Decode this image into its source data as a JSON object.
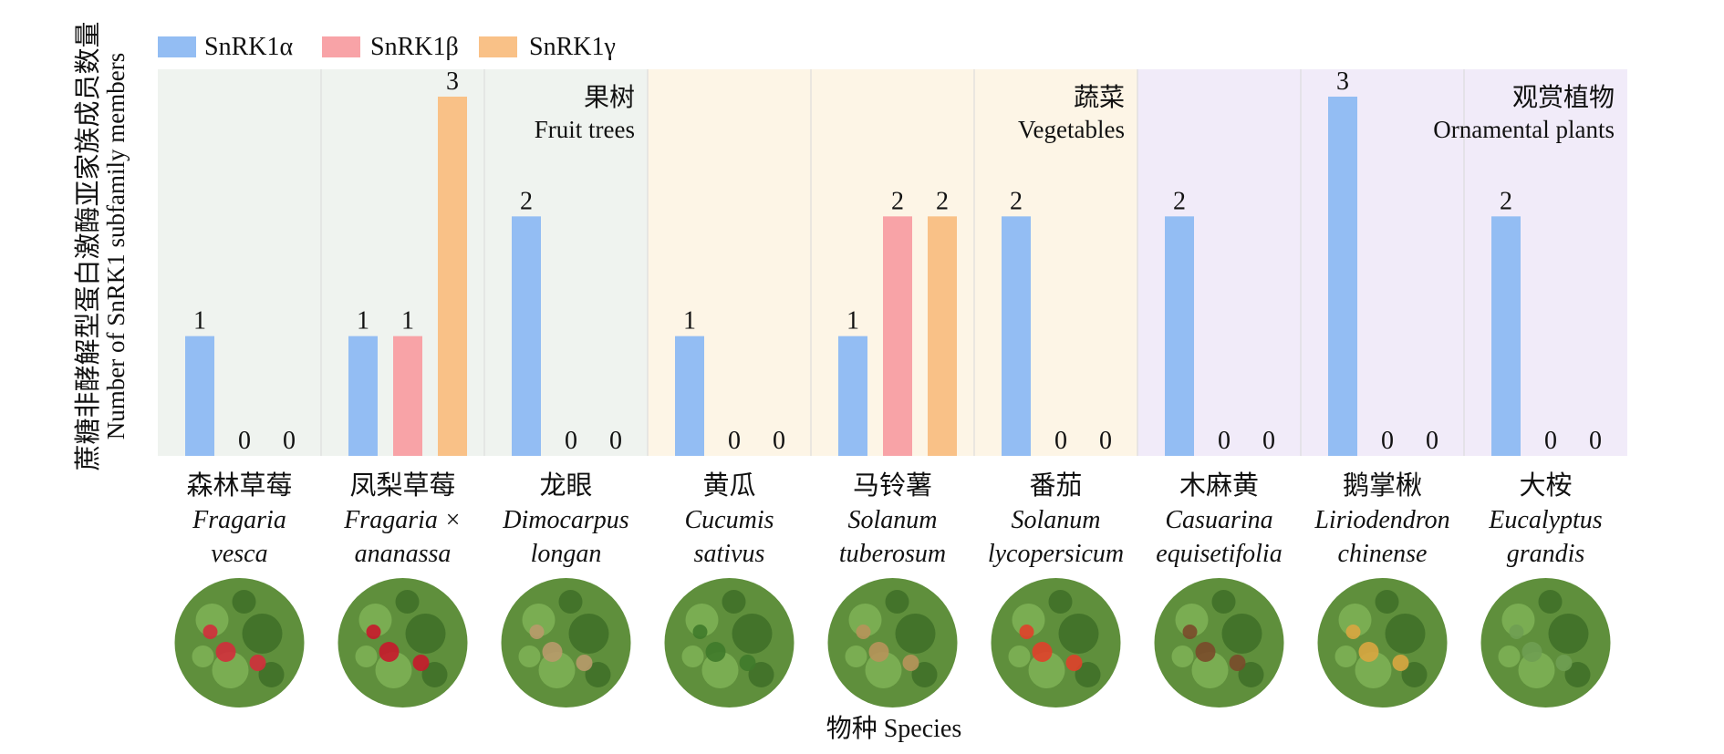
{
  "chart_data": {
    "type": "bar",
    "ylabel_cn": "蔗糖非酵解型蛋白激酶亚家族成员数量",
    "ylabel_en": "Number of SnRK1 subfamily members",
    "xlabel": "物种 Species",
    "ylim": [
      0,
      3
    ],
    "legend_position": "top-left",
    "series": [
      {
        "name": "SnRK1α",
        "color": "#93bdf3",
        "values": [
          1,
          1,
          2,
          1,
          1,
          2,
          2,
          3,
          2
        ]
      },
      {
        "name": "SnRK1β",
        "color": "#f8a3a7",
        "values": [
          0,
          1,
          0,
          0,
          2,
          0,
          0,
          0,
          0
        ]
      },
      {
        "name": "SnRK1γ",
        "color": "#f9c187",
        "values": [
          0,
          3,
          0,
          0,
          2,
          0,
          0,
          0,
          0
        ]
      }
    ],
    "categories": [
      {
        "cn": "森林草莓",
        "latin1": "Fragaria",
        "latin2": "vesca",
        "photo": "wild-strawberry-photo"
      },
      {
        "cn": "凤梨草莓",
        "latin1": "Fragaria ×",
        "latin2": "ananassa",
        "photo": "strawberry-photo"
      },
      {
        "cn": "龙眼",
        "latin1": "Dimocarpus",
        "latin2": "longan",
        "photo": "longan-photo"
      },
      {
        "cn": "黄瓜",
        "latin1": "Cucumis",
        "latin2": "sativus",
        "photo": "cucumber-photo"
      },
      {
        "cn": "马铃薯",
        "latin1": "Solanum",
        "latin2": "tuberosum",
        "photo": "potato-photo"
      },
      {
        "cn": "番茄",
        "latin1": "Solanum",
        "latin2": "lycopersicum",
        "photo": "tomato-photo"
      },
      {
        "cn": "木麻黄",
        "latin1": "Casuarina",
        "latin2": "equisetifolia",
        "photo": "casuarina-photo"
      },
      {
        "cn": "鹅掌楸",
        "latin1": "Liriodendron",
        "latin2": "chinense",
        "photo": "tulip-tree-photo"
      },
      {
        "cn": "大桉",
        "latin1": "Eucalyptus",
        "latin2": "grandis",
        "photo": "eucalyptus-photo"
      }
    ],
    "groups": [
      {
        "cn": "果树",
        "en": "Fruit trees",
        "categories": [
          0,
          1,
          2
        ],
        "color": "#eff3ef"
      },
      {
        "cn": "蔬菜",
        "en": "Vegetables",
        "categories": [
          3,
          4,
          5
        ],
        "color": "#fdf5e6"
      },
      {
        "cn": "观赏植物",
        "en": "Ornamental plants",
        "categories": [
          6,
          7,
          8
        ],
        "color": "#f1ebf9"
      }
    ]
  }
}
